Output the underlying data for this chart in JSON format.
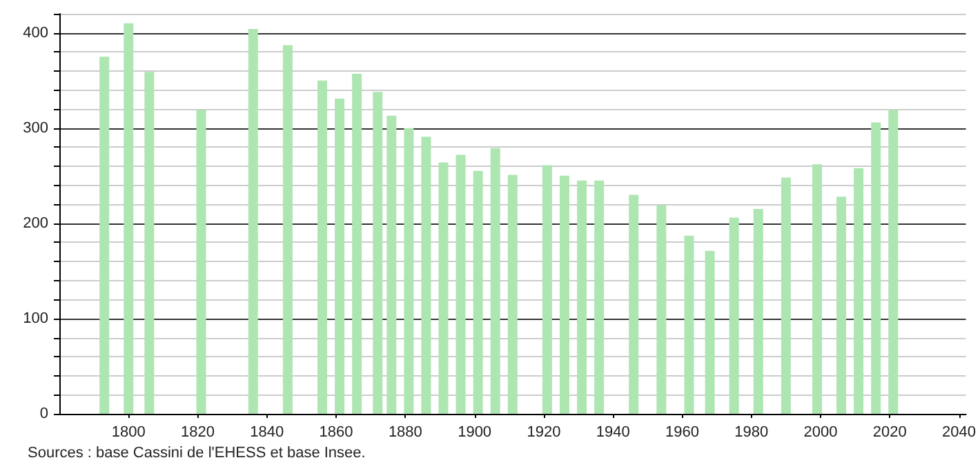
{
  "chart_data": {
    "type": "bar",
    "x": [
      1793,
      1800,
      1806,
      1821,
      1836,
      1846,
      1856,
      1861,
      1866,
      1872,
      1876,
      1881,
      1886,
      1891,
      1896,
      1901,
      1906,
      1911,
      1921,
      1926,
      1931,
      1936,
      1946,
      1954,
      1962,
      1968,
      1975,
      1982,
      1990,
      1999,
      2006,
      2011,
      2016,
      2021
    ],
    "values": [
      375,
      410,
      359,
      319,
      404,
      387,
      350,
      331,
      357,
      338,
      313,
      300,
      291,
      264,
      272,
      255,
      279,
      251,
      261,
      250,
      245,
      245,
      230,
      219,
      187,
      171,
      206,
      215,
      248,
      262,
      228,
      258,
      306,
      319
    ],
    "color": "#ade6b1",
    "xlim": [
      1780,
      2042
    ],
    "xticks": [
      1800,
      1820,
      1840,
      1860,
      1880,
      1900,
      1920,
      1940,
      1960,
      1980,
      2000,
      2020,
      2040
    ],
    "ylim": [
      0,
      420
    ],
    "yticks": [
      0,
      {
        "value": 20,
        "label": null
      },
      {
        "value": 40,
        "label": null
      },
      {
        "value": 60,
        "label": null
      },
      {
        "value": 80,
        "label": null
      },
      100,
      {
        "value": 120,
        "label": null
      },
      {
        "value": 140,
        "label": null
      },
      {
        "value": 160,
        "label": null
      },
      {
        "value": 180,
        "label": null
      },
      200,
      {
        "value": 220,
        "label": null
      },
      {
        "value": 240,
        "label": null
      },
      {
        "value": 260,
        "label": null
      },
      {
        "value": 280,
        "label": null
      },
      300,
      {
        "value": 320,
        "label": null
      },
      {
        "value": 340,
        "label": null
      },
      {
        "value": 360,
        "label": null
      },
      {
        "value": 380,
        "label": null
      },
      400,
      {
        "value": 420,
        "label": null
      }
    ],
    "grid": "y",
    "annotations": [
      "Sources : base Cassini de l'EHESS et base Insee."
    ]
  }
}
